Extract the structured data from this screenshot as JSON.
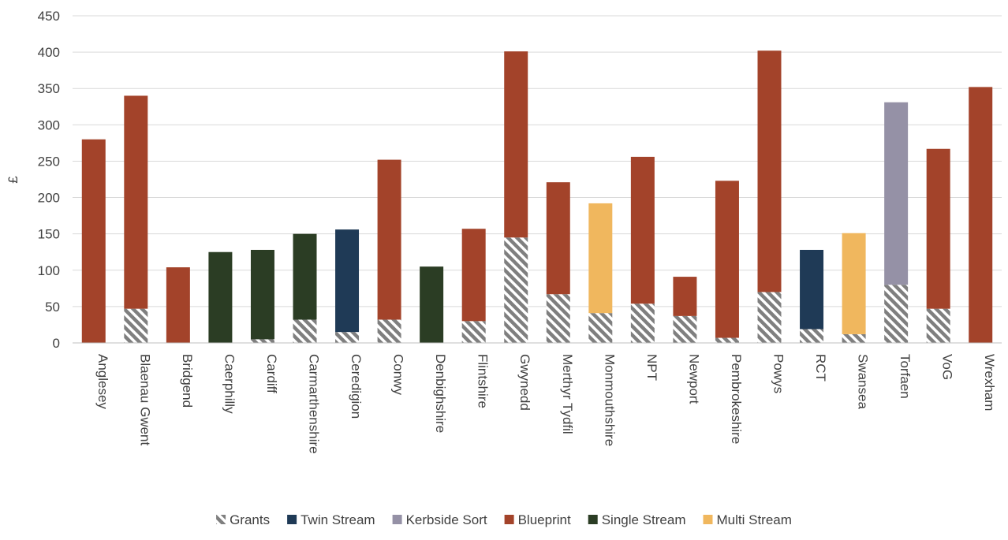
{
  "chart_data": {
    "type": "bar",
    "stacked": true,
    "title": "",
    "xlabel": "",
    "ylabel": "£",
    "ylim": [
      0,
      450
    ],
    "yticks": [
      0,
      50,
      100,
      150,
      200,
      250,
      300,
      350,
      400,
      450
    ],
    "grid": "horizontal",
    "legend_position": "bottom",
    "categories": [
      "Anglesey",
      "Blaenau Gwent",
      "Bridgend",
      "Caerphilly",
      "Cardiff",
      "Carmarthenshire",
      "Ceredigion",
      "Conwy",
      "Denbighshire",
      "Flintshire",
      "Gwynedd",
      "Merthyr Tydfil",
      "Monmouthshire",
      "NPT",
      "Newport",
      "Pembrokeshire",
      "Powys",
      "RCT",
      "Swansea",
      "Torfaen",
      "VoG",
      "Wrexham"
    ],
    "series": [
      {
        "name": "Grants",
        "color": "#7f7f7f",
        "pattern": "hatch",
        "values": [
          0,
          47,
          0,
          0,
          5,
          32,
          15,
          32,
          0,
          30,
          145,
          67,
          41,
          54,
          37,
          7,
          70,
          19,
          12,
          80,
          47,
          0
        ]
      },
      {
        "name": "Twin Stream",
        "color": "#1f3a56",
        "values": [
          0,
          0,
          0,
          0,
          0,
          0,
          141,
          0,
          0,
          0,
          0,
          0,
          0,
          0,
          0,
          0,
          0,
          109,
          0,
          0,
          0,
          0
        ]
      },
      {
        "name": "Kerbside Sort",
        "color": "#9591a6",
        "values": [
          0,
          0,
          0,
          0,
          0,
          0,
          0,
          0,
          0,
          0,
          0,
          0,
          0,
          0,
          0,
          0,
          0,
          0,
          0,
          251,
          0,
          0
        ]
      },
      {
        "name": "Blueprint",
        "color": "#a3432a",
        "values": [
          280,
          293,
          104,
          0,
          0,
          0,
          0,
          220,
          0,
          127,
          256,
          154,
          0,
          202,
          54,
          216,
          332,
          0,
          0,
          0,
          220,
          352
        ]
      },
      {
        "name": "Single Stream",
        "color": "#2b3d24",
        "values": [
          0,
          0,
          0,
          125,
          123,
          118,
          0,
          0,
          105,
          0,
          0,
          0,
          0,
          0,
          0,
          0,
          0,
          0,
          0,
          0,
          0,
          0
        ]
      },
      {
        "name": "Multi Stream",
        "color": "#f0b75e",
        "values": [
          0,
          0,
          0,
          0,
          0,
          0,
          0,
          0,
          0,
          0,
          0,
          0,
          151,
          0,
          0,
          0,
          0,
          0,
          139,
          0,
          0,
          0
        ]
      }
    ]
  }
}
